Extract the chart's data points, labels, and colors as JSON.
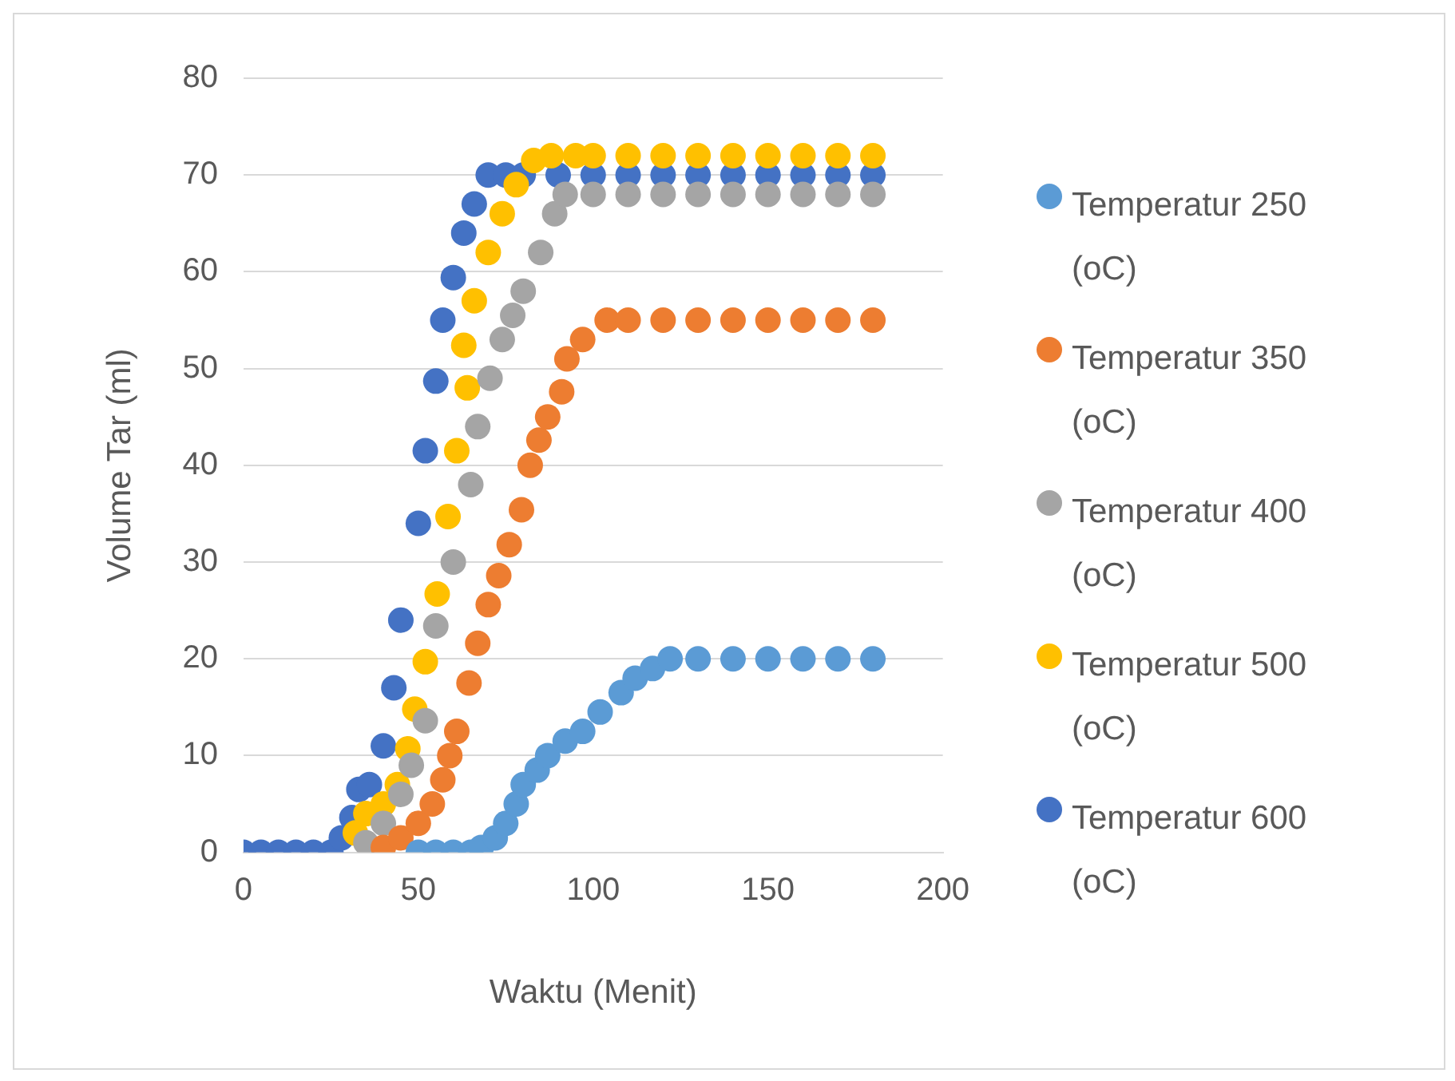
{
  "chart_data": {
    "type": "scatter",
    "xlabel": "Waktu (Menit)",
    "ylabel": "Volume Tar (ml)",
    "xlim": [
      0,
      200
    ],
    "xticks": [
      0,
      50,
      100,
      150,
      200
    ],
    "ylim": [
      0,
      80
    ],
    "yticks": [
      0,
      10,
      20,
      30,
      40,
      50,
      60,
      70,
      80
    ],
    "grid": "y",
    "legend": "right",
    "marker": "circle",
    "series": [
      {
        "name": "Temperatur 250 (oC)",
        "color": "#5b9bd5",
        "x": [
          50,
          55,
          60,
          65,
          68,
          72,
          75,
          78,
          80,
          84,
          87,
          92,
          97,
          102,
          108,
          112,
          117,
          122,
          130,
          140,
          150,
          160,
          170,
          180
        ],
        "values": [
          0,
          0,
          0,
          0,
          0.5,
          1.5,
          3,
          5,
          7,
          8.5,
          10,
          11.5,
          12.5,
          14.5,
          16.5,
          18,
          19,
          20,
          20,
          20,
          20,
          20,
          20,
          20
        ]
      },
      {
        "name": "Temperatur 350 (oC)",
        "color": "#ed7d31",
        "x": [
          40,
          45,
          50,
          54,
          57,
          59,
          61,
          64.5,
          67,
          70,
          73,
          76,
          79.5,
          82,
          84.5,
          87,
          91,
          92.5,
          97,
          104,
          110,
          120,
          130,
          140,
          150,
          160,
          170,
          180
        ],
        "values": [
          0.5,
          1.5,
          3,
          5,
          7.5,
          10,
          12.5,
          17.5,
          21.6,
          25.6,
          28.6,
          31.8,
          35.4,
          40,
          42.6,
          45,
          47.6,
          51,
          53,
          55,
          55,
          55,
          55,
          55,
          55,
          55,
          55,
          55
        ]
      },
      {
        "name": "Temperatur 400 (oC)",
        "color": "#a5a5a5",
        "x": [
          35,
          40,
          45,
          48,
          52,
          55,
          60,
          65,
          67,
          70.5,
          74,
          77,
          80,
          85,
          89,
          92,
          100,
          110,
          120,
          130,
          140,
          150,
          160,
          170,
          180
        ],
        "values": [
          1,
          3,
          6,
          9,
          13.6,
          23.4,
          30,
          38,
          44,
          49,
          53,
          55.5,
          58,
          62,
          66,
          68,
          68,
          68,
          68,
          68,
          68,
          68,
          68,
          68,
          68
        ]
      },
      {
        "name": "Temperatur 500 (oC)",
        "color": "#ffc000",
        "x": [
          32,
          35,
          40,
          44,
          47,
          49,
          52,
          55.4,
          58.5,
          61,
          63,
          64,
          66,
          70,
          74,
          78,
          83,
          88,
          95,
          100,
          110,
          120,
          130,
          140,
          150,
          160,
          170,
          180
        ],
        "values": [
          2,
          4,
          5,
          7,
          10.7,
          14.8,
          19.7,
          26.7,
          34.7,
          41.5,
          52.4,
          48,
          57,
          62,
          66,
          69,
          71.5,
          72,
          72,
          72,
          72,
          72,
          72,
          72,
          72,
          72,
          72,
          72
        ]
      },
      {
        "name": "Temperatur 600 (oC)",
        "color": "#4472c4",
        "x": [
          0,
          5,
          10,
          15,
          20,
          25,
          28,
          31,
          33,
          36,
          40,
          43,
          45,
          50,
          52,
          55,
          57,
          60,
          63,
          66,
          70,
          75,
          80,
          90,
          100,
          110,
          120,
          130,
          140,
          150,
          160,
          170,
          180
        ],
        "values": [
          0,
          0,
          0,
          0,
          0,
          0,
          1.5,
          3.6,
          6.5,
          7,
          11,
          17,
          24,
          34,
          41.5,
          48.7,
          55,
          59.4,
          64,
          67,
          70,
          70,
          70,
          70,
          70,
          70,
          70,
          70,
          70,
          70,
          70,
          70,
          70
        ]
      }
    ]
  }
}
